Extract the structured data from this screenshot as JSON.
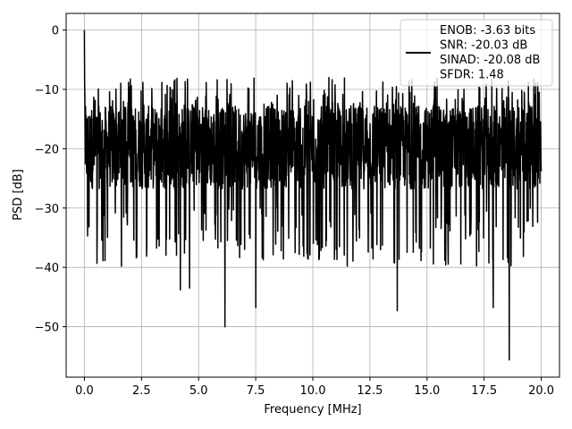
{
  "chart_data": {
    "type": "line",
    "xlabel": "Frequency [MHz]",
    "ylabel": "PSD [dB]",
    "xlim": [
      -0.8,
      20.8
    ],
    "ylim": [
      -58.5,
      2.8
    ],
    "xticks": [
      0.0,
      2.5,
      5.0,
      7.5,
      10.0,
      12.5,
      15.0,
      17.5,
      20.0
    ],
    "xtick_labels": [
      "0.0",
      "2.5",
      "5.0",
      "7.5",
      "10.0",
      "12.5",
      "15.0",
      "17.5",
      "20.0"
    ],
    "yticks": [
      0,
      -10,
      -20,
      -30,
      -40,
      -50
    ],
    "ytick_labels": [
      "0",
      "−10",
      "−20",
      "−30",
      "−40",
      "−50"
    ],
    "grid": true,
    "legend_position": "top-right",
    "series": [
      {
        "name": "ENOB: -3.63 bits\nSNR: -20.03 dB\nSINAD: -20.08 dB\nSFDR: 1.48",
        "color": "#000000",
        "description_points": {
          "x_range": [
            0,
            20
          ],
          "peak": {
            "x": 0.0,
            "y": 0.0
          },
          "noise_floor_mean": -20.5,
          "noise_upper": -8,
          "noise_lower": -47,
          "min_dips": [
            {
              "x": 6.15,
              "y": -50.0
            },
            {
              "x": 18.6,
              "y": -55.6
            },
            {
              "x": 7.5,
              "y": -46.8
            },
            {
              "x": 13.7,
              "y": -47.3
            },
            {
              "x": 17.9,
              "y": -46.8
            },
            {
              "x": 4.2,
              "y": -43.8
            },
            {
              "x": 4.6,
              "y": -43.5
            }
          ]
        }
      }
    ]
  }
}
